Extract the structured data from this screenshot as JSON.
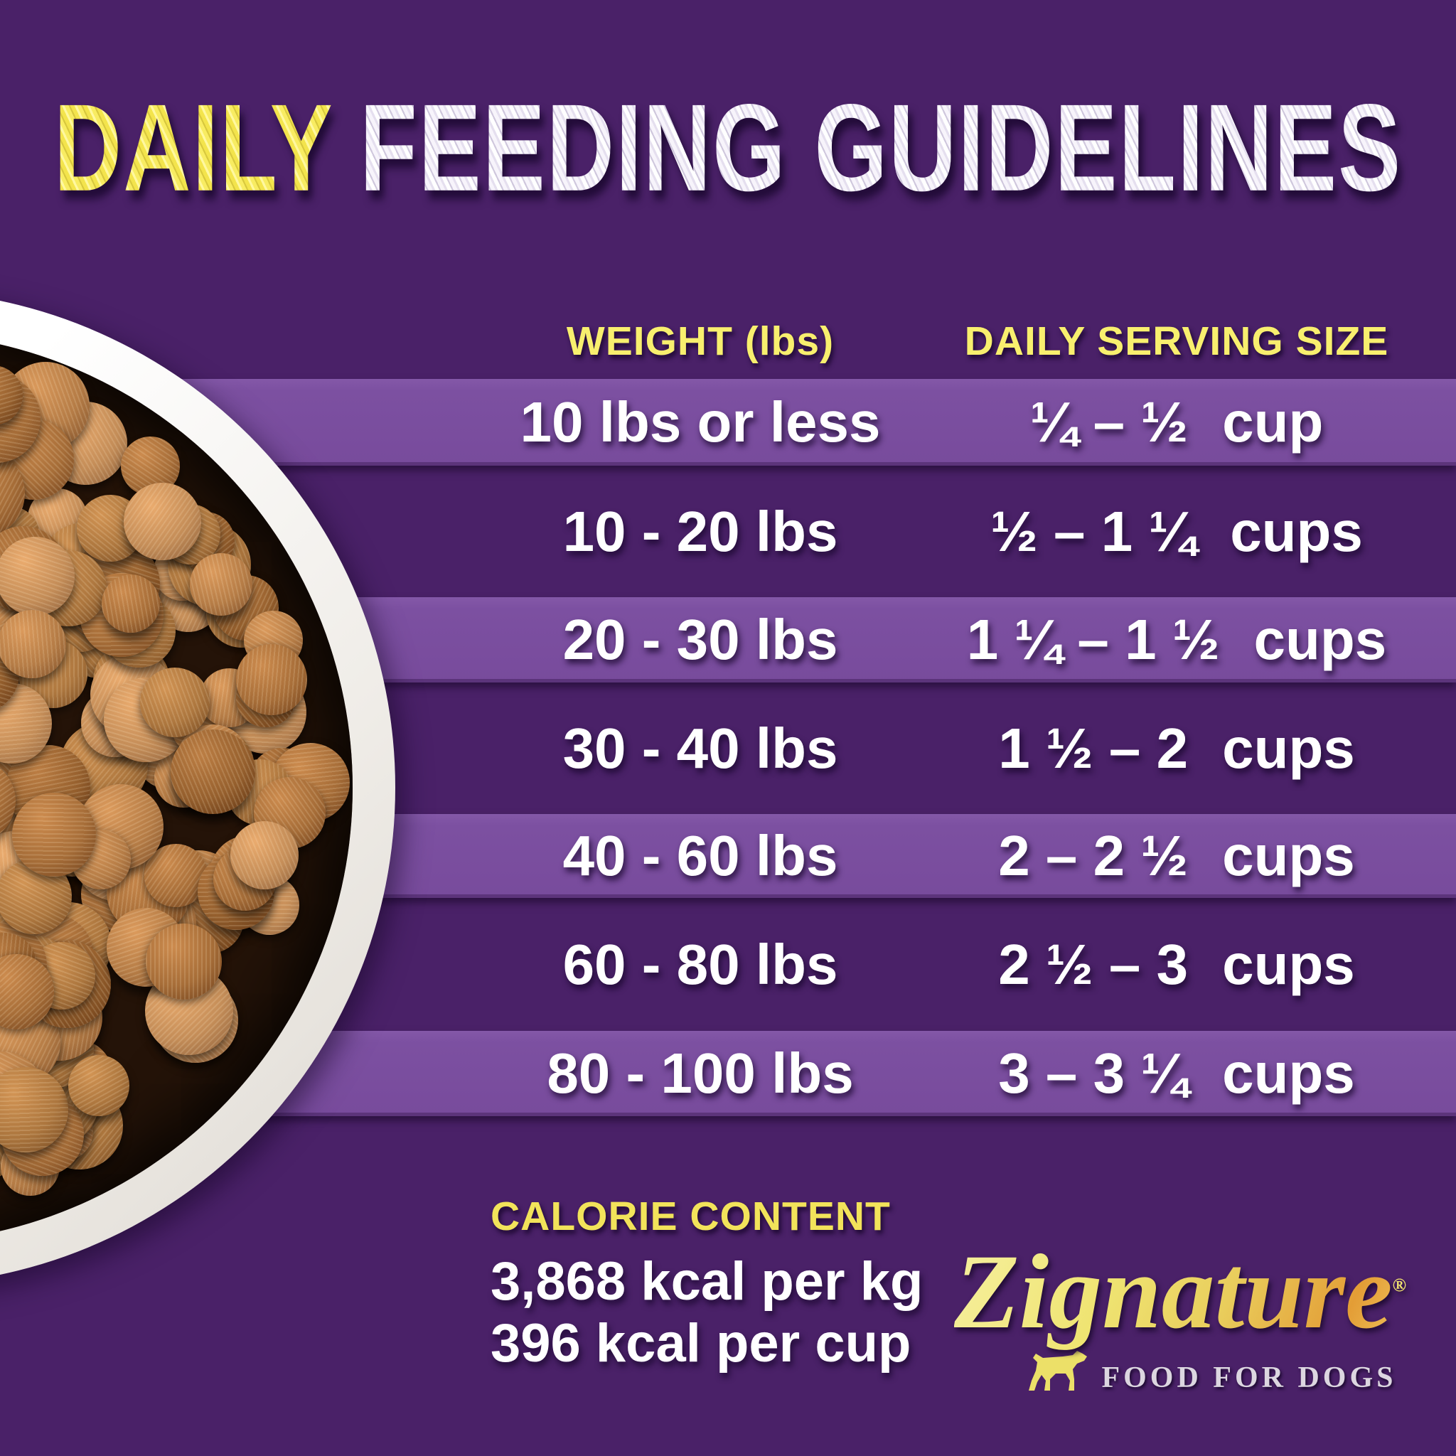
{
  "title": {
    "highlight": "DAILY",
    "rest": "FEEDING GUIDELINES"
  },
  "table": {
    "headers": {
      "weight": "WEIGHT (lbs)",
      "serving": "DAILY SERVING SIZE"
    },
    "rows": [
      {
        "weight": "10 lbs or less",
        "range": "¼ – ½",
        "unit": "cup"
      },
      {
        "weight": "10 - 20 lbs",
        "range": "½ – 1 ¼",
        "unit": "cups"
      },
      {
        "weight": "20 - 30 lbs",
        "range": "1 ¼ – 1 ½",
        "unit": "cups"
      },
      {
        "weight": "30 - 40 lbs",
        "range": "1 ½ – 2",
        "unit": "cups"
      },
      {
        "weight": "40 - 60 lbs",
        "range": "2 – 2 ½",
        "unit": "cups"
      },
      {
        "weight": "60 - 80 lbs",
        "range": "2 ½ – 3",
        "unit": "cups"
      },
      {
        "weight": "80 - 100 lbs",
        "range": "3 – 3 ¼",
        "unit": "cups"
      }
    ]
  },
  "calories": {
    "heading": "CALORIE CONTENT",
    "per_kg": "3,868 kcal per kg",
    "per_cup": "396 kcal per cup"
  },
  "brand": {
    "name": "Zignature",
    "registered": "®",
    "tagline": "FOOD FOR DOGS",
    "dog_icon": "dog-silhouette-icon"
  },
  "image": {
    "bowl_photo": "white bowl filled with round brown dog kibble"
  },
  "colors": {
    "background": "#4a2168",
    "band": "#7c50a1",
    "heading_yellow": "#f8ef6e",
    "calorie_yellow": "#f2e35a",
    "row_text": "#ffffff",
    "logo_gold": "#e9cd5c",
    "tagline_silver": "#dcd6e0"
  }
}
